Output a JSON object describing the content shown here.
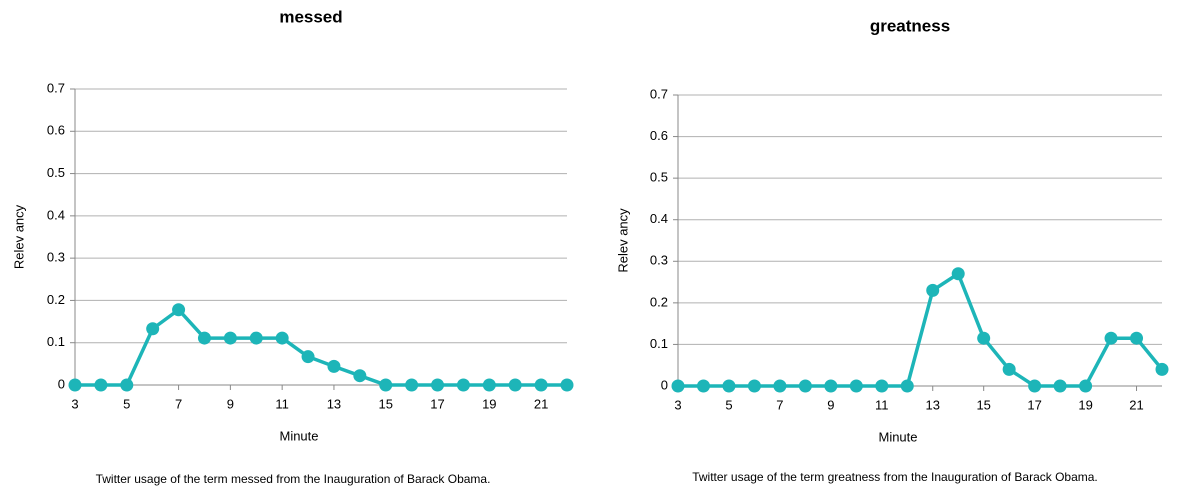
{
  "chart_data": [
    {
      "type": "line",
      "title": "messed",
      "x_label": "Minute",
      "y_label": "Relev ancy",
      "caption": "Twitter usage of the term messed from the Inauguration of Barack Obama.",
      "x": [
        3,
        4,
        5,
        6,
        7,
        8,
        9,
        10,
        11,
        12,
        13,
        14,
        15,
        16,
        17,
        18,
        19,
        20,
        21,
        22
      ],
      "series": [
        {
          "color": "#1db5b8",
          "values": [
            0,
            0,
            0,
            0.133,
            0.178,
            0.111,
            0.111,
            0.111,
            0.111,
            0.067,
            0.044,
            0.022,
            0,
            0,
            0,
            0,
            0,
            0,
            0,
            0
          ]
        }
      ],
      "xlim": [
        3,
        22
      ],
      "xticks": [
        3,
        5,
        7,
        9,
        11,
        13,
        15,
        17,
        19,
        21
      ],
      "ylim": [
        0,
        0.7
      ],
      "yticks": [
        0,
        0.1,
        0.2,
        0.3,
        0.4,
        0.5,
        0.6,
        0.7
      ],
      "grid": true
    },
    {
      "type": "line",
      "title": "greatness",
      "x_label": "Minute",
      "y_label": "Relev ancy",
      "caption": "Twitter usage of the term greatness from the Inauguration of Barack Obama.",
      "x": [
        3,
        4,
        5,
        6,
        7,
        8,
        9,
        10,
        11,
        12,
        13,
        14,
        15,
        16,
        17,
        18,
        19,
        20,
        21,
        22
      ],
      "series": [
        {
          "color": "#1db5b8",
          "values": [
            0,
            0,
            0,
            0,
            0,
            0,
            0,
            0,
            0,
            0,
            0.23,
            0.27,
            0.115,
            0.04,
            0,
            0,
            0,
            0.115,
            0.115,
            0.04
          ]
        }
      ],
      "xlim": [
        3,
        22
      ],
      "xticks": [
        3,
        5,
        7,
        9,
        11,
        13,
        15,
        17,
        19,
        21
      ],
      "ylim": [
        0,
        0.7
      ],
      "yticks": [
        0,
        0.1,
        0.2,
        0.3,
        0.4,
        0.5,
        0.6,
        0.7
      ],
      "grid": true
    }
  ]
}
